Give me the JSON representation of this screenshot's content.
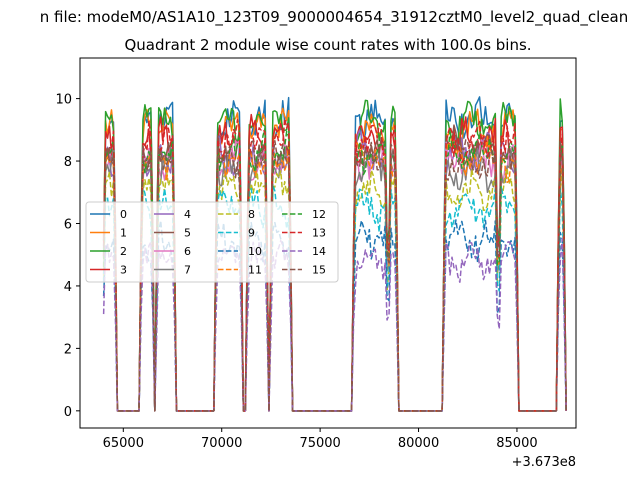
{
  "chart_data": {
    "type": "line",
    "suptitle": "n file: modeM0/AS1A10_123T09_9000004654_31912cztM0_level2_quad_clean",
    "title": "Quadrant 2 module wise count rates with 100.0s bins.",
    "xlabel": "",
    "ylabel": "",
    "offset_label": "+3.673e8",
    "xlim": [
      62800,
      88000
    ],
    "ylim": [
      -0.55,
      11.3
    ],
    "xticks": [
      65000,
      70000,
      75000,
      80000,
      85000
    ],
    "yticks": [
      0,
      2,
      4,
      6,
      8,
      10
    ],
    "x_tick_labels": [
      "65000",
      "70000",
      "75000",
      "80000",
      "85000"
    ],
    "y_tick_labels": [
      "0",
      "2",
      "4",
      "6",
      "8",
      "10"
    ],
    "legend_location": "center-left",
    "segments": [
      {
        "start": 64000,
        "end": 64600
      },
      {
        "start": 65900,
        "end": 66500
      },
      {
        "start": 66700,
        "end": 67600
      },
      {
        "start": 69700,
        "end": 71000
      },
      {
        "start": 71300,
        "end": 72300
      },
      {
        "start": 72500,
        "end": 73500
      },
      {
        "start": 76700,
        "end": 78400
      },
      {
        "start": 78500,
        "end": 78900
      },
      {
        "start": 81300,
        "end": 84000
      },
      {
        "start": 84100,
        "end": 85000
      },
      {
        "start": 87100,
        "end": 87400
      }
    ],
    "series": [
      {
        "name": "0",
        "color": "#1f77b4",
        "dash": "solid",
        "level": 9.4
      },
      {
        "name": "1",
        "color": "#ff7f0e",
        "dash": "solid",
        "level": 9.0
      },
      {
        "name": "2",
        "color": "#2ca02c",
        "dash": "solid",
        "level": 9.2
      },
      {
        "name": "3",
        "color": "#d62728",
        "dash": "solid",
        "level": 8.7
      },
      {
        "name": "4",
        "color": "#9467bd",
        "dash": "solid",
        "level": 8.2
      },
      {
        "name": "5",
        "color": "#8c564b",
        "dash": "solid",
        "level": 8.4
      },
      {
        "name": "6",
        "color": "#e377c2",
        "dash": "solid",
        "level": 8.0
      },
      {
        "name": "7",
        "color": "#7f7f7f",
        "dash": "solid",
        "level": 7.7
      },
      {
        "name": "8",
        "color": "#bcbd22",
        "dash": "dashed",
        "level": 7.0
      },
      {
        "name": "9",
        "color": "#17becf",
        "dash": "dashed",
        "level": 6.5
      },
      {
        "name": "10",
        "color": "#1f77b4",
        "dash": "dashed",
        "level": 5.5
      },
      {
        "name": "11",
        "color": "#ff7f0e",
        "dash": "dashed",
        "level": 8.1
      },
      {
        "name": "12",
        "color": "#2ca02c",
        "dash": "dashed",
        "level": 8.3
      },
      {
        "name": "13",
        "color": "#d62728",
        "dash": "dashed",
        "level": 8.6
      },
      {
        "name": "14",
        "color": "#9467bd",
        "dash": "dashed",
        "level": 4.8
      },
      {
        "name": "15",
        "color": "#8c564b",
        "dash": "dashed",
        "level": 8.0
      }
    ]
  }
}
